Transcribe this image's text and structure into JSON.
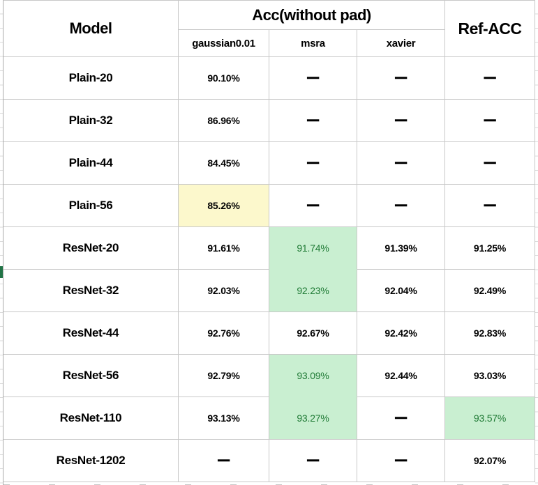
{
  "header": {
    "model": "Model",
    "acc_group": "Acc(without pad)",
    "ref": "Ref-ACC",
    "sub_columns": [
      "gaussian0.01",
      "msra",
      "xavier"
    ]
  },
  "rows": [
    {
      "model": "Plain-20",
      "cells": [
        {
          "text": "90.10%"
        },
        {
          "text": "—",
          "dash": true
        },
        {
          "text": "—",
          "dash": true
        },
        {
          "text": "—",
          "dash": true
        }
      ]
    },
    {
      "model": "Plain-32",
      "cells": [
        {
          "text": "86.96%"
        },
        {
          "text": "—",
          "dash": true
        },
        {
          "text": "—",
          "dash": true
        },
        {
          "text": "—",
          "dash": true
        }
      ]
    },
    {
      "model": "Plain-44",
      "cells": [
        {
          "text": "84.45%"
        },
        {
          "text": "—",
          "dash": true
        },
        {
          "text": "—",
          "dash": true
        },
        {
          "text": "—",
          "dash": true
        }
      ]
    },
    {
      "model": "Plain-56",
      "cells": [
        {
          "text": "85.26%",
          "hl": "yellow"
        },
        {
          "text": "—",
          "dash": true
        },
        {
          "text": "—",
          "dash": true
        },
        {
          "text": "—",
          "dash": true
        }
      ]
    },
    {
      "model": "ResNet-20",
      "cells": [
        {
          "text": "91.61%"
        },
        {
          "text": "91.74%",
          "hl": "green green-top"
        },
        {
          "text": "91.39%"
        },
        {
          "text": "91.25%"
        }
      ]
    },
    {
      "model": "ResNet-32",
      "cells": [
        {
          "text": "92.03%"
        },
        {
          "text": "92.23%",
          "hl": "green"
        },
        {
          "text": "92.04%"
        },
        {
          "text": "92.49%"
        }
      ]
    },
    {
      "model": "ResNet-44",
      "cells": [
        {
          "text": "92.76%"
        },
        {
          "text": "92.67%"
        },
        {
          "text": "92.42%"
        },
        {
          "text": "92.83%"
        }
      ]
    },
    {
      "model": "ResNet-56",
      "cells": [
        {
          "text": "92.79%"
        },
        {
          "text": "93.09%",
          "hl": "green green-top"
        },
        {
          "text": "92.44%"
        },
        {
          "text": "93.03%"
        }
      ]
    },
    {
      "model": "ResNet-110",
      "cells": [
        {
          "text": "93.13%"
        },
        {
          "text": "93.27%",
          "hl": "green"
        },
        {
          "text": "—",
          "dash": true
        },
        {
          "text": "93.57%",
          "hl": "green"
        }
      ]
    },
    {
      "model": "ResNet-1202",
      "cells": [
        {
          "text": "—",
          "dash": true
        },
        {
          "text": "—",
          "dash": true
        },
        {
          "text": "—",
          "dash": true
        },
        {
          "text": "92.07%"
        }
      ]
    }
  ],
  "column_keys": [
    "gaussian",
    "msra",
    "xavier",
    "ref-acc"
  ],
  "colors": {
    "grid": "#c8c8c8",
    "grid_dark": "#ababab",
    "highlight_yellow": "#fcf8cc",
    "highlight_green_fill": "#c9efd1",
    "green_text": "#1f7a35",
    "selection_marker_green": "#217346",
    "text": "#000000"
  }
}
